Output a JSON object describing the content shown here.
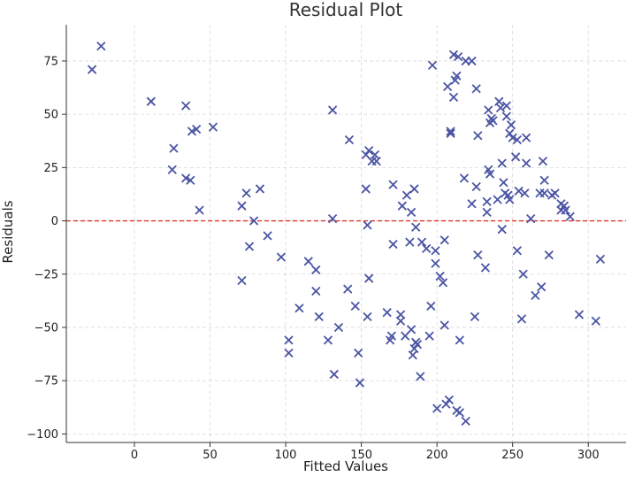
{
  "chart_data": {
    "type": "scatter",
    "title": "Residual Plot",
    "xlabel": "Fitted Values",
    "ylabel": "Residuals",
    "xlim": [
      -45,
      325
    ],
    "ylim": [
      -104,
      92
    ],
    "xticks": [
      0,
      50,
      100,
      150,
      200,
      250,
      300
    ],
    "yticks": [
      -100,
      -75,
      -50,
      -25,
      0,
      25,
      50,
      75
    ],
    "grid": true,
    "reference_line": {
      "y": 0,
      "color": "#e0332b",
      "style": "dashed"
    },
    "marker": "x",
    "marker_color": "#4a54a3",
    "points": [
      [
        -28,
        71
      ],
      [
        -22,
        82
      ],
      [
        11,
        56
      ],
      [
        25,
        24
      ],
      [
        26,
        34
      ],
      [
        34,
        54
      ],
      [
        34,
        20
      ],
      [
        37,
        19
      ],
      [
        38,
        42
      ],
      [
        41,
        43
      ],
      [
        43,
        5
      ],
      [
        52,
        44
      ],
      [
        71,
        7
      ],
      [
        71,
        -28
      ],
      [
        74,
        13
      ],
      [
        76,
        -12
      ],
      [
        79,
        0
      ],
      [
        83,
        15
      ],
      [
        88,
        -7
      ],
      [
        97,
        -17
      ],
      [
        102,
        -56
      ],
      [
        102,
        -62
      ],
      [
        109,
        -41
      ],
      [
        115,
        -19
      ],
      [
        120,
        -33
      ],
      [
        120,
        -23
      ],
      [
        122,
        -45
      ],
      [
        128,
        -56
      ],
      [
        131,
        1
      ],
      [
        131,
        52
      ],
      [
        132,
        -72
      ],
      [
        135,
        -50
      ],
      [
        141,
        -32
      ],
      [
        142,
        38
      ],
      [
        146,
        -40
      ],
      [
        148,
        -62
      ],
      [
        149,
        -76
      ],
      [
        153,
        15
      ],
      [
        153,
        31
      ],
      [
        154,
        -2
      ],
      [
        154,
        -45
      ],
      [
        155,
        33
      ],
      [
        155,
        -27
      ],
      [
        157,
        28
      ],
      [
        159,
        31
      ],
      [
        160,
        28
      ],
      [
        167,
        -43
      ],
      [
        169,
        -56
      ],
      [
        170,
        -54
      ],
      [
        171,
        17
      ],
      [
        171,
        -11
      ],
      [
        176,
        -47
      ],
      [
        176,
        -44
      ],
      [
        177,
        7
      ],
      [
        179,
        -54
      ],
      [
        180,
        12
      ],
      [
        182,
        -10
      ],
      [
        183,
        4
      ],
      [
        183,
        -51
      ],
      [
        184,
        -63
      ],
      [
        185,
        15
      ],
      [
        185,
        -60
      ],
      [
        186,
        -57
      ],
      [
        186,
        -3
      ],
      [
        187,
        -58
      ],
      [
        189,
        -73
      ],
      [
        190,
        -10
      ],
      [
        193,
        -13
      ],
      [
        195,
        -54
      ],
      [
        196,
        -40
      ],
      [
        197,
        73
      ],
      [
        199,
        -14
      ],
      [
        199,
        -20
      ],
      [
        200,
        -88
      ],
      [
        202,
        -26
      ],
      [
        204,
        -29
      ],
      [
        205,
        -9
      ],
      [
        205,
        -49
      ],
      [
        206,
        -86
      ],
      [
        207,
        63
      ],
      [
        208,
        -84
      ],
      [
        209,
        42
      ],
      [
        209,
        41
      ],
      [
        211,
        58
      ],
      [
        211,
        78
      ],
      [
        212,
        66
      ],
      [
        213,
        68
      ],
      [
        213,
        -89
      ],
      [
        214,
        77
      ],
      [
        215,
        -56
      ],
      [
        215,
        -90
      ],
      [
        218,
        20
      ],
      [
        219,
        75
      ],
      [
        219,
        -94
      ],
      [
        223,
        75
      ],
      [
        223,
        8
      ],
      [
        225,
        -45
      ],
      [
        226,
        62
      ],
      [
        226,
        16
      ],
      [
        227,
        -16
      ],
      [
        227,
        40
      ],
      [
        232,
        -22
      ],
      [
        233,
        4
      ],
      [
        233,
        9
      ],
      [
        234,
        52
      ],
      [
        234,
        24
      ],
      [
        235,
        22
      ],
      [
        235,
        46
      ],
      [
        236,
        48
      ],
      [
        237,
        47
      ],
      [
        240,
        10
      ],
      [
        241,
        56
      ],
      [
        242,
        53
      ],
      [
        243,
        27
      ],
      [
        243,
        -4
      ],
      [
        244,
        18
      ],
      [
        245,
        13
      ],
      [
        246,
        54
      ],
      [
        246,
        49
      ],
      [
        247,
        12
      ],
      [
        248,
        41
      ],
      [
        248,
        10
      ],
      [
        249,
        45
      ],
      [
        250,
        39
      ],
      [
        252,
        30
      ],
      [
        253,
        38
      ],
      [
        253,
        -14
      ],
      [
        254,
        14
      ],
      [
        256,
        -46
      ],
      [
        257,
        -25
      ],
      [
        258,
        13
      ],
      [
        259,
        39
      ],
      [
        259,
        27
      ],
      [
        262,
        1
      ],
      [
        265,
        -35
      ],
      [
        268,
        13
      ],
      [
        269,
        -31
      ],
      [
        270,
        28
      ],
      [
        271,
        13
      ],
      [
        271,
        19
      ],
      [
        274,
        -16
      ],
      [
        276,
        12
      ],
      [
        278,
        13
      ],
      [
        282,
        5
      ],
      [
        282,
        8
      ],
      [
        284,
        7
      ],
      [
        285,
        5
      ],
      [
        288,
        2
      ],
      [
        294,
        -44
      ],
      [
        305,
        -47
      ],
      [
        308,
        -18
      ]
    ]
  }
}
